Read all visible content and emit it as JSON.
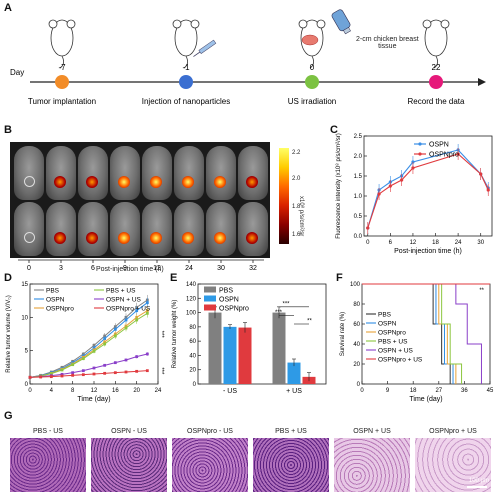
{
  "panels": {
    "A": "A",
    "B": "B",
    "C": "C",
    "D": "D",
    "E": "E",
    "F": "F",
    "G": "G"
  },
  "timeline": {
    "day_label": "Day",
    "days": [
      "-7",
      "-1",
      "0",
      "22"
    ],
    "events": [
      "Tumor implantation",
      "Injection of nanoparticles",
      "US irradiation",
      "Record the data"
    ],
    "tissue_label": "2-cm chicken breast\ntissue",
    "colors": [
      "#f28c28",
      "#3b6fd1",
      "#7cc242",
      "#e6197a"
    ]
  },
  "imaging": {
    "times": [
      "0",
      "3",
      "6",
      "9",
      "12",
      "24",
      "30",
      "32"
    ],
    "xlabel": "Post-injection time (h)",
    "colorbar_ticks": [
      "2.2",
      "2.0",
      "1.8",
      "1.6"
    ],
    "colorbar_unit": "x10⁸ p/s/cm²/sr"
  },
  "histology": {
    "labels": [
      "PBS - US",
      "OSPN - US",
      "OSPNpro - US",
      "PBS + US",
      "OSPN + US",
      "OSPNpro + US"
    ],
    "scale_bar": "100 μm"
  },
  "chart_data": [
    {
      "id": "C",
      "type": "line",
      "ylabel": "Fluorescence intensity (x10⁸ p/s/cm²/sr)",
      "xlabel": "Post-injection time (h)",
      "x": [
        0,
        3,
        6,
        9,
        12,
        24,
        30,
        32
      ],
      "xticks": [
        "0",
        "6",
        "12",
        "18",
        "24",
        "30"
      ],
      "ylim": [
        0,
        2.5
      ],
      "yticks": [
        "0.0",
        "0.5",
        "1.0",
        "1.5",
        "2.0",
        "2.5"
      ],
      "series": [
        {
          "name": "OSPN",
          "color": "#3a8ee6",
          "values": [
            0.2,
            1.15,
            1.35,
            1.5,
            1.85,
            2.15,
            1.55,
            1.2
          ]
        },
        {
          "name": "OSPNpro",
          "color": "#e03a3e",
          "values": [
            0.2,
            1.05,
            1.25,
            1.4,
            1.7,
            2.05,
            1.55,
            1.15
          ]
        }
      ]
    },
    {
      "id": "D",
      "type": "line",
      "ylabel": "Relative tumor volume (V/V₀)",
      "xlabel": "Time (day)",
      "x": [
        0,
        2,
        4,
        6,
        8,
        10,
        12,
        14,
        16,
        18,
        20,
        22
      ],
      "xticks": [
        "0",
        "4",
        "8",
        "12",
        "16",
        "20",
        "24"
      ],
      "ylim": [
        0,
        15
      ],
      "yticks": [
        "0",
        "5",
        "10",
        "15"
      ],
      "significance": [
        "***",
        "***"
      ],
      "series": [
        {
          "name": "PBS",
          "color": "#808080",
          "values": [
            1,
            1.3,
            1.8,
            2.5,
            3.4,
            4.5,
            5.8,
            7.2,
            8.6,
            10.0,
            11.5,
            12.6
          ]
        },
        {
          "name": "OSPN",
          "color": "#2f8de4",
          "values": [
            1,
            1.25,
            1.7,
            2.3,
            3.2,
            4.2,
            5.4,
            6.8,
            8.2,
            9.6,
            11.0,
            12.2
          ]
        },
        {
          "name": "OSPNpro",
          "color": "#e8a33a",
          "values": [
            1,
            1.2,
            1.6,
            2.2,
            3.0,
            4.0,
            5.1,
            6.3,
            7.5,
            8.7,
            10.0,
            11.0
          ]
        },
        {
          "name": "PBS + US",
          "color": "#8cc63f",
          "values": [
            1,
            1.2,
            1.55,
            2.1,
            2.9,
            3.8,
            4.9,
            6.0,
            7.2,
            8.4,
            9.6,
            10.6
          ]
        },
        {
          "name": "OSPN + US",
          "color": "#8a3fc9",
          "values": [
            1,
            1.1,
            1.25,
            1.45,
            1.7,
            2.0,
            2.4,
            2.8,
            3.2,
            3.6,
            4.1,
            4.5
          ]
        },
        {
          "name": "OSPNpro + US",
          "color": "#e03a3e",
          "values": [
            1,
            1.05,
            1.1,
            1.2,
            1.3,
            1.4,
            1.5,
            1.6,
            1.7,
            1.8,
            1.9,
            2.0
          ]
        }
      ]
    },
    {
      "id": "E",
      "type": "bar",
      "ylabel": "Relative tumor weight (%)",
      "categories": [
        "- US",
        "+ US"
      ],
      "ylim": [
        0,
        140
      ],
      "yticks": [
        "0",
        "20",
        "40",
        "60",
        "80",
        "100",
        "120",
        "140"
      ],
      "significance": [
        "***",
        "***",
        "**"
      ],
      "series": [
        {
          "name": "PBS",
          "color": "#808080",
          "values": [
            100,
            100
          ],
          "errors": [
            8,
            8
          ]
        },
        {
          "name": "OSPN",
          "color": "#2e9ae6",
          "values": [
            80,
            30
          ],
          "errors": [
            3,
            5
          ]
        },
        {
          "name": "OSPNpro",
          "color": "#e03a3e",
          "values": [
            79,
            10
          ],
          "errors": [
            7,
            6
          ]
        }
      ]
    },
    {
      "id": "F",
      "type": "line",
      "ylabel": "Survival rate (%)",
      "xlabel": "Time (day)",
      "xticks": [
        "0",
        "9",
        "18",
        "27",
        "36",
        "45"
      ],
      "ylim": [
        0,
        100
      ],
      "yticks": [
        "0",
        "20",
        "40",
        "60",
        "80",
        "100"
      ],
      "significance": [
        "**"
      ],
      "series": [
        {
          "name": "PBS",
          "color": "#333333",
          "steps": [
            [
              0,
              100
            ],
            [
              25,
              100
            ],
            [
              25,
              60
            ],
            [
              28,
              60
            ],
            [
              28,
              20
            ],
            [
              31,
              20
            ],
            [
              31,
              0
            ]
          ]
        },
        {
          "name": "OSPN",
          "color": "#2f8de4",
          "steps": [
            [
              0,
              100
            ],
            [
              26,
              100
            ],
            [
              26,
              60
            ],
            [
              29,
              60
            ],
            [
              29,
              20
            ],
            [
              32,
              20
            ],
            [
              32,
              0
            ]
          ]
        },
        {
          "name": "OSPNpro",
          "color": "#e8a33a",
          "steps": [
            [
              0,
              100
            ],
            [
              27,
              100
            ],
            [
              27,
              60
            ],
            [
              30,
              60
            ],
            [
              30,
              20
            ],
            [
              33,
              20
            ],
            [
              33,
              0
            ]
          ]
        },
        {
          "name": "PBS + US",
          "color": "#8cc63f",
          "steps": [
            [
              0,
              100
            ],
            [
              28,
              100
            ],
            [
              28,
              60
            ],
            [
              31,
              60
            ],
            [
              31,
              20
            ],
            [
              35,
              20
            ],
            [
              35,
              0
            ]
          ]
        },
        {
          "name": "OSPN + US",
          "color": "#8a3fc9",
          "steps": [
            [
              0,
              100
            ],
            [
              33,
              100
            ],
            [
              33,
              80
            ],
            [
              37,
              80
            ],
            [
              37,
              40
            ],
            [
              42,
              40
            ],
            [
              42,
              0
            ]
          ]
        },
        {
          "name": "OSPNpro + US",
          "color": "#e03a3e",
          "steps": [
            [
              0,
              100
            ],
            [
              45,
              100
            ]
          ]
        }
      ]
    }
  ]
}
